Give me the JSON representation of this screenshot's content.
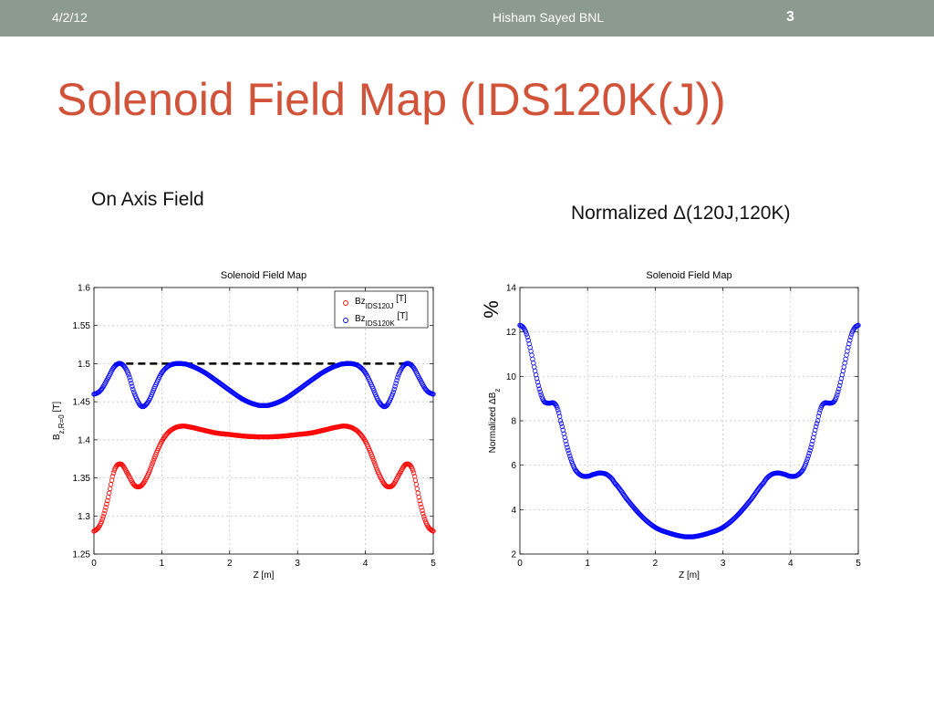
{
  "header": {
    "date": "4/2/12",
    "author": "Hisham Sayed BNL",
    "page_number": "3"
  },
  "slide": {
    "title": "Solenoid Field Map (IDS120K(J))",
    "left_subtitle": "On Axis Field",
    "right_subtitle": "Normalized Δ(120J,120K)"
  },
  "colors": {
    "header_bar": "#8c9a8f",
    "title": "#d0533a",
    "series_red": "#ff0000",
    "series_blue": "#0000ff",
    "reference": "#000000"
  },
  "chart_data": [
    {
      "type": "scatter",
      "title": "Solenoid Field Map",
      "xlabel": "Z [m]",
      "ylabel": {
        "base": "B",
        "sub": "z,R=0",
        "unit": "[T]"
      },
      "xlim": [
        0,
        5
      ],
      "ylim": [
        1.25,
        1.6
      ],
      "xticks": [
        "0",
        "1",
        "2",
        "3",
        "4",
        "5"
      ],
      "yticks": [
        "1.25",
        "1.3",
        "1.35",
        "1.4",
        "1.45",
        "1.5",
        "1.55",
        "1.6"
      ],
      "grid": true,
      "legend_position": "top-right",
      "reference_line": {
        "y": 1.5,
        "x_range": [
          0.3,
          4.7
        ],
        "style": "dashed"
      },
      "series": [
        {
          "name_base": "Bz",
          "name_sub": "IDS120J",
          "name_unit": "[T]",
          "color": "#ff0000",
          "marker": "circle",
          "x": [
            0,
            0.1,
            0.2,
            0.3,
            0.4,
            0.5,
            0.6,
            0.7,
            0.8,
            0.9,
            1.0,
            1.1,
            1.2,
            1.3,
            1.4,
            1.6,
            1.8,
            2.0,
            2.2,
            2.4,
            2.5,
            2.6,
            2.8,
            3.0,
            3.2,
            3.4,
            3.6,
            3.7,
            3.8,
            3.9,
            4.0,
            4.1,
            4.2,
            4.3,
            4.4,
            4.5,
            4.6,
            4.7,
            4.8,
            4.9,
            5.0
          ],
          "y": [
            1.28,
            1.29,
            1.32,
            1.36,
            1.368,
            1.355,
            1.34,
            1.34,
            1.355,
            1.378,
            1.398,
            1.41,
            1.416,
            1.418,
            1.417,
            1.413,
            1.409,
            1.407,
            1.405,
            1.404,
            1.404,
            1.404,
            1.405,
            1.407,
            1.409,
            1.413,
            1.417,
            1.418,
            1.416,
            1.41,
            1.398,
            1.378,
            1.355,
            1.34,
            1.34,
            1.355,
            1.368,
            1.36,
            1.32,
            1.29,
            1.28
          ]
        },
        {
          "name_base": "Bz",
          "name_sub": "IDS120K",
          "name_unit": "[T]",
          "color": "#0000ff",
          "marker": "circle",
          "x": [
            0,
            0.1,
            0.2,
            0.3,
            0.4,
            0.5,
            0.6,
            0.7,
            0.8,
            0.9,
            1.0,
            1.1,
            1.2,
            1.3,
            1.4,
            1.6,
            1.8,
            2.0,
            2.2,
            2.4,
            2.5,
            2.6,
            2.8,
            3.0,
            3.2,
            3.4,
            3.6,
            3.7,
            3.8,
            3.9,
            4.0,
            4.1,
            4.2,
            4.3,
            4.4,
            4.5,
            4.6,
            4.7,
            4.8,
            4.9,
            5.0
          ],
          "y": [
            1.46,
            1.465,
            1.48,
            1.496,
            1.5,
            1.488,
            1.46,
            1.444,
            1.45,
            1.47,
            1.488,
            1.497,
            1.5,
            1.5,
            1.498,
            1.49,
            1.478,
            1.465,
            1.453,
            1.446,
            1.445,
            1.446,
            1.453,
            1.465,
            1.478,
            1.49,
            1.498,
            1.5,
            1.5,
            1.497,
            1.488,
            1.47,
            1.45,
            1.444,
            1.46,
            1.488,
            1.5,
            1.496,
            1.48,
            1.465,
            1.46
          ]
        }
      ]
    },
    {
      "type": "scatter",
      "title": "Solenoid Field Map",
      "xlabel": "Z [m]",
      "ylabel": {
        "base": "Normalized ΔB",
        "sub": "z"
      },
      "unit_annotation": "%",
      "xlim": [
        0,
        5
      ],
      "ylim": [
        2,
        14
      ],
      "xticks": [
        "0",
        "1",
        "2",
        "3",
        "4",
        "5"
      ],
      "yticks": [
        "2",
        "4",
        "6",
        "8",
        "10",
        "12",
        "14"
      ],
      "grid": true,
      "series": [
        {
          "color": "#0000ff",
          "marker": "circle",
          "x": [
            0,
            0.05,
            0.1,
            0.15,
            0.2,
            0.25,
            0.3,
            0.35,
            0.4,
            0.45,
            0.5,
            0.55,
            0.6,
            0.7,
            0.8,
            0.9,
            1.0,
            1.1,
            1.2,
            1.3,
            1.4,
            1.6,
            1.8,
            2.0,
            2.2,
            2.4,
            2.5,
            2.6,
            2.8,
            3.0,
            3.2,
            3.4,
            3.6,
            3.7,
            3.8,
            3.9,
            4.0,
            4.1,
            4.2,
            4.3,
            4.4,
            4.45,
            4.5,
            4.55,
            4.6,
            4.65,
            4.7,
            4.75,
            4.8,
            4.85,
            4.9,
            4.95,
            5.0
          ],
          "y": [
            12.3,
            12.2,
            11.9,
            11.3,
            10.6,
            9.9,
            9.3,
            8.9,
            8.8,
            8.8,
            8.8,
            8.6,
            8.0,
            6.8,
            5.9,
            5.55,
            5.5,
            5.6,
            5.65,
            5.55,
            5.2,
            4.4,
            3.7,
            3.2,
            2.95,
            2.8,
            2.78,
            2.8,
            2.95,
            3.2,
            3.7,
            4.4,
            5.2,
            5.55,
            5.65,
            5.6,
            5.5,
            5.55,
            5.9,
            6.8,
            8.0,
            8.6,
            8.8,
            8.8,
            8.8,
            8.9,
            9.3,
            9.9,
            10.6,
            11.3,
            11.9,
            12.2,
            12.3
          ]
        }
      ]
    }
  ]
}
